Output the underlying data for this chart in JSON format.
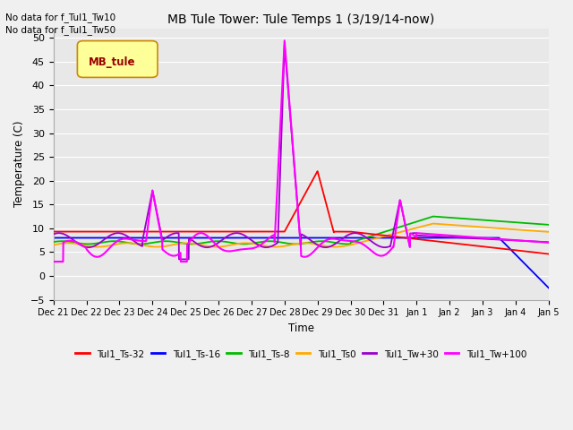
{
  "title": "MB Tule Tower: Tule Temps 1 (3/19/14-now)",
  "xlabel": "Time",
  "ylabel": "Temperature (C)",
  "ylim": [
    -5,
    52
  ],
  "yticks": [
    -5,
    0,
    5,
    10,
    15,
    20,
    25,
    30,
    35,
    40,
    45,
    50
  ],
  "no_data_text": [
    "No data for f_Tul1_Tw10",
    "No data for f_Tul1_Tw50"
  ],
  "legend_box_text": "MB_tule",
  "legend_box_color": "#ffff99",
  "legend_box_border": "#cc8800",
  "legend_box_text_color": "#990000",
  "series_colors": {
    "Tul1_Ts-32": "#ff0000",
    "Tul1_Ts-16": "#0000ff",
    "Tul1_Ts-8": "#00bb00",
    "Tul1_Ts0": "#ffaa00",
    "Tul1_Tw+30": "#9900cc",
    "Tul1_Tw+100": "#ff00ff"
  },
  "x_tick_labels": [
    "Dec 21",
    "Dec 22",
    "Dec 23",
    "Dec 24",
    "Dec 25",
    "Dec 26",
    "Dec 27",
    "Dec 28",
    "Dec 29",
    "Dec 30",
    "Dec 31",
    "Jan 1",
    "Jan 2",
    "Jan 3",
    "Jan 4",
    "Jan 5"
  ],
  "fig_bg_color": "#f0f0f0",
  "plot_bg_color": "#e8e8e8",
  "grid_color": "#ffffff"
}
